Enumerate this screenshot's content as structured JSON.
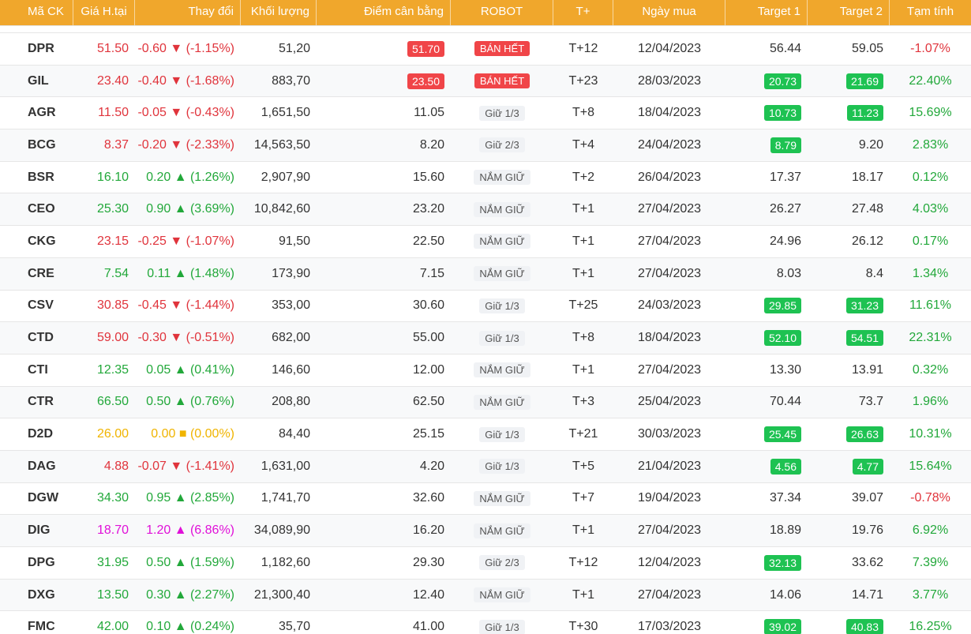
{
  "header": {
    "symbol": "Mã CK",
    "price": "Giá H.tại",
    "change": "Thay đổi",
    "volume": "Khối lượng",
    "balance": "Điểm cân bằng",
    "robot": "ROBOT",
    "tplus": "T+",
    "buy_date": "Ngày mua",
    "target1": "Target 1",
    "target2": "Target 2",
    "temp": "Tạm tính"
  },
  "colors": {
    "header_bg": "#f0a72c",
    "down": "#e0343c",
    "up": "#22a83a",
    "reference": "#f0b400",
    "ceiling": "#e010d8",
    "badge_red": "#f04548",
    "badge_green": "#1ec252"
  },
  "rows": [
    {
      "symbol": "DPR",
      "price": "51.50",
      "change": "-0.60 ▼ (-1.15%)",
      "change_dir": "down",
      "volume": "51,20",
      "balance": "51.70",
      "balance_style": "red",
      "robot": "BÁN HẾT",
      "robot_style": "sell",
      "tplus": "T+12",
      "buy_date": "12/04/2023",
      "target1": "56.44",
      "t1_style": "plain",
      "target2": "59.05",
      "t2_style": "plain",
      "temp": "-1.07%",
      "temp_dir": "down"
    },
    {
      "symbol": "GIL",
      "price": "23.40",
      "change": "-0.40 ▼ (-1.68%)",
      "change_dir": "down",
      "volume": "883,70",
      "balance": "23.50",
      "balance_style": "red",
      "robot": "BÁN HẾT",
      "robot_style": "sell",
      "tplus": "T+23",
      "buy_date": "28/03/2023",
      "target1": "20.73",
      "t1_style": "green",
      "target2": "21.69",
      "t2_style": "green",
      "temp": "22.40%",
      "temp_dir": "up"
    },
    {
      "symbol": "AGR",
      "price": "11.50",
      "change": "-0.05 ▼ (-0.43%)",
      "change_dir": "down",
      "volume": "1,651,50",
      "balance": "11.05",
      "balance_style": "plain",
      "robot": "Giữ 1/3",
      "robot_style": "gray",
      "tplus": "T+8",
      "buy_date": "18/04/2023",
      "target1": "10.73",
      "t1_style": "green",
      "target2": "11.23",
      "t2_style": "green",
      "temp": "15.69%",
      "temp_dir": "up"
    },
    {
      "symbol": "BCG",
      "price": "8.37",
      "change": "-0.20 ▼ (-2.33%)",
      "change_dir": "down",
      "volume": "14,563,50",
      "balance": "8.20",
      "balance_style": "plain",
      "robot": "Giữ 2/3",
      "robot_style": "gray",
      "tplus": "T+4",
      "buy_date": "24/04/2023",
      "target1": "8.79",
      "t1_style": "green",
      "target2": "9.20",
      "t2_style": "plain",
      "temp": "2.83%",
      "temp_dir": "up"
    },
    {
      "symbol": "BSR",
      "price": "16.10",
      "change": "0.20 ▲ (1.26%)",
      "change_dir": "up",
      "volume": "2,907,90",
      "balance": "15.60",
      "balance_style": "plain",
      "robot": "NẮM GIỮ",
      "robot_style": "gray",
      "tplus": "T+2",
      "buy_date": "26/04/2023",
      "target1": "17.37",
      "t1_style": "plain",
      "target2": "18.17",
      "t2_style": "plain",
      "temp": "0.12%",
      "temp_dir": "up"
    },
    {
      "symbol": "CEO",
      "price": "25.30",
      "change": "0.90 ▲ (3.69%)",
      "change_dir": "up",
      "volume": "10,842,60",
      "balance": "23.20",
      "balance_style": "plain",
      "robot": "NẮM GIỮ",
      "robot_style": "gray",
      "tplus": "T+1",
      "buy_date": "27/04/2023",
      "target1": "26.27",
      "t1_style": "plain",
      "target2": "27.48",
      "t2_style": "plain",
      "temp": "4.03%",
      "temp_dir": "up"
    },
    {
      "symbol": "CKG",
      "price": "23.15",
      "change": "-0.25 ▼ (-1.07%)",
      "change_dir": "down",
      "volume": "91,50",
      "balance": "22.50",
      "balance_style": "plain",
      "robot": "NẮM GIỮ",
      "robot_style": "gray",
      "tplus": "T+1",
      "buy_date": "27/04/2023",
      "target1": "24.96",
      "t1_style": "plain",
      "target2": "26.12",
      "t2_style": "plain",
      "temp": "0.17%",
      "temp_dir": "up"
    },
    {
      "symbol": "CRE",
      "price": "7.54",
      "change": "0.11 ▲ (1.48%)",
      "change_dir": "up",
      "volume": "173,90",
      "balance": "7.15",
      "balance_style": "plain",
      "robot": "NẮM GIỮ",
      "robot_style": "gray",
      "tplus": "T+1",
      "buy_date": "27/04/2023",
      "target1": "8.03",
      "t1_style": "plain",
      "target2": "8.4",
      "t2_style": "plain",
      "temp": "1.34%",
      "temp_dir": "up"
    },
    {
      "symbol": "CSV",
      "price": "30.85",
      "change": "-0.45 ▼ (-1.44%)",
      "change_dir": "down",
      "volume": "353,00",
      "balance": "30.60",
      "balance_style": "plain",
      "robot": "Giữ 1/3",
      "robot_style": "gray",
      "tplus": "T+25",
      "buy_date": "24/03/2023",
      "target1": "29.85",
      "t1_style": "green",
      "target2": "31.23",
      "t2_style": "green",
      "temp": "11.61%",
      "temp_dir": "up"
    },
    {
      "symbol": "CTD",
      "price": "59.00",
      "change": "-0.30 ▼ (-0.51%)",
      "change_dir": "down",
      "volume": "682,00",
      "balance": "55.00",
      "balance_style": "plain",
      "robot": "Giữ 1/3",
      "robot_style": "gray",
      "tplus": "T+8",
      "buy_date": "18/04/2023",
      "target1": "52.10",
      "t1_style": "green",
      "target2": "54.51",
      "t2_style": "green",
      "temp": "22.31%",
      "temp_dir": "up"
    },
    {
      "symbol": "CTI",
      "price": "12.35",
      "change": "0.05 ▲ (0.41%)",
      "change_dir": "up",
      "volume": "146,60",
      "balance": "12.00",
      "balance_style": "plain",
      "robot": "NẮM GIỮ",
      "robot_style": "gray",
      "tplus": "T+1",
      "buy_date": "27/04/2023",
      "target1": "13.30",
      "t1_style": "plain",
      "target2": "13.91",
      "t2_style": "plain",
      "temp": "0.32%",
      "temp_dir": "up"
    },
    {
      "symbol": "CTR",
      "price": "66.50",
      "change": "0.50 ▲ (0.76%)",
      "change_dir": "up",
      "volume": "208,80",
      "balance": "62.50",
      "balance_style": "plain",
      "robot": "NẮM GIỮ",
      "robot_style": "gray",
      "tplus": "T+3",
      "buy_date": "25/04/2023",
      "target1": "70.44",
      "t1_style": "plain",
      "target2": "73.7",
      "t2_style": "plain",
      "temp": "1.96%",
      "temp_dir": "up"
    },
    {
      "symbol": "D2D",
      "price": "26.00",
      "change": "0.00 ■ (0.00%)",
      "change_dir": "ref",
      "volume": "84,40",
      "balance": "25.15",
      "balance_style": "plain",
      "robot": "Giữ 1/3",
      "robot_style": "gray",
      "tplus": "T+21",
      "buy_date": "30/03/2023",
      "target1": "25.45",
      "t1_style": "green",
      "target2": "26.63",
      "t2_style": "green",
      "temp": "10.31%",
      "temp_dir": "up"
    },
    {
      "symbol": "DAG",
      "price": "4.88",
      "change": "-0.07 ▼ (-1.41%)",
      "change_dir": "down",
      "volume": "1,631,00",
      "balance": "4.20",
      "balance_style": "plain",
      "robot": "Giữ 1/3",
      "robot_style": "gray",
      "tplus": "T+5",
      "buy_date": "21/04/2023",
      "target1": "4.56",
      "t1_style": "green",
      "target2": "4.77",
      "t2_style": "green",
      "temp": "15.64%",
      "temp_dir": "up"
    },
    {
      "symbol": "DGW",
      "price": "34.30",
      "change": "0.95 ▲ (2.85%)",
      "change_dir": "up",
      "volume": "1,741,70",
      "balance": "32.60",
      "balance_style": "plain",
      "robot": "NẮM GIỮ",
      "robot_style": "gray",
      "tplus": "T+7",
      "buy_date": "19/04/2023",
      "target1": "37.34",
      "t1_style": "plain",
      "target2": "39.07",
      "t2_style": "plain",
      "temp": "-0.78%",
      "temp_dir": "down"
    },
    {
      "symbol": "DIG",
      "price": "18.70",
      "change": "1.20 ▲ (6.86%)",
      "change_dir": "ceil",
      "volume": "34,089,90",
      "balance": "16.20",
      "balance_style": "plain",
      "robot": "NẮM GIỮ",
      "robot_style": "gray",
      "tplus": "T+1",
      "buy_date": "27/04/2023",
      "target1": "18.89",
      "t1_style": "plain",
      "target2": "19.76",
      "t2_style": "plain",
      "temp": "6.92%",
      "temp_dir": "up"
    },
    {
      "symbol": "DPG",
      "price": "31.95",
      "change": "0.50 ▲ (1.59%)",
      "change_dir": "up",
      "volume": "1,182,60",
      "balance": "29.30",
      "balance_style": "plain",
      "robot": "Giữ 2/3",
      "robot_style": "gray",
      "tplus": "T+12",
      "buy_date": "12/04/2023",
      "target1": "32.13",
      "t1_style": "green",
      "target2": "33.62",
      "t2_style": "plain",
      "temp": "7.39%",
      "temp_dir": "up"
    },
    {
      "symbol": "DXG",
      "price": "13.50",
      "change": "0.30 ▲ (2.27%)",
      "change_dir": "up",
      "volume": "21,300,40",
      "balance": "12.40",
      "balance_style": "plain",
      "robot": "NẮM GIỮ",
      "robot_style": "gray",
      "tplus": "T+1",
      "buy_date": "27/04/2023",
      "target1": "14.06",
      "t1_style": "plain",
      "target2": "14.71",
      "t2_style": "plain",
      "temp": "3.77%",
      "temp_dir": "up"
    },
    {
      "symbol": "FMC",
      "price": "42.00",
      "change": "0.10 ▲ (0.24%)",
      "change_dir": "up",
      "volume": "35,70",
      "balance": "41.00",
      "balance_style": "plain",
      "robot": "Giữ 1/3",
      "robot_style": "gray",
      "tplus": "T+30",
      "buy_date": "17/03/2023",
      "target1": "39.02",
      "t1_style": "green",
      "target2": "40.83",
      "t2_style": "green",
      "temp": "16.25%",
      "temp_dir": "up"
    }
  ]
}
